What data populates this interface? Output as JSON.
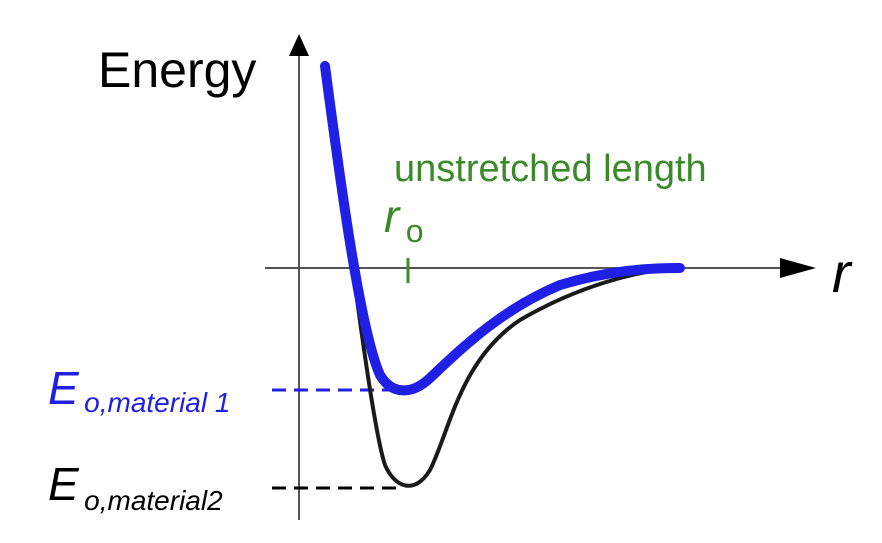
{
  "axes": {
    "y_label": "Energy",
    "x_label": "r"
  },
  "annotations": {
    "unstretched_label": "unstretched length",
    "r0": {
      "base": "r",
      "sub": "o"
    },
    "e_material1": {
      "base": "E",
      "sub": "o,material 1"
    },
    "e_material2": {
      "base": "E",
      "sub": "o,material2"
    }
  },
  "colors": {
    "axis": "#000000",
    "material1": "#1f1fe6",
    "material2": "#1a1a1a",
    "annotation_green": "#3a8a2a",
    "background": "#ffffff"
  }
}
